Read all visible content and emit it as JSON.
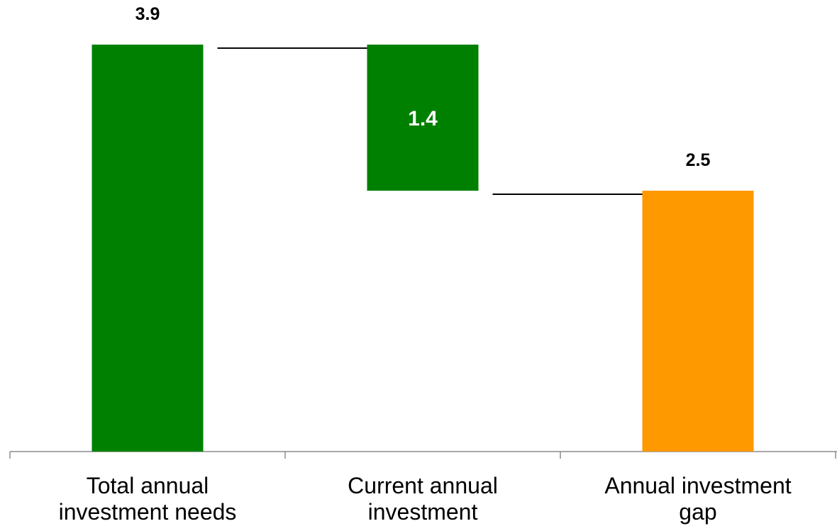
{
  "chart_data": {
    "type": "bar",
    "subtype": "waterfall",
    "categories": [
      [
        "Total annual",
        "investment needs"
      ],
      [
        "Current annual",
        "investment"
      ],
      [
        "Annual investment gap"
      ]
    ],
    "bars": [
      {
        "kind": "total",
        "start": 0,
        "end": 3.9,
        "value": 3.9,
        "label": "3.9",
        "label_position": "above",
        "color": "#008000"
      },
      {
        "kind": "decrease",
        "start": 3.9,
        "end": 2.5,
        "value": 1.4,
        "label": "1.4",
        "label_position": "inside",
        "color": "#008000"
      },
      {
        "kind": "total",
        "start": 0,
        "end": 2.5,
        "value": 2.5,
        "label": "2.5",
        "label_position": "above",
        "color": "#FF9900"
      }
    ],
    "connectors": true,
    "y_axis_visible": false,
    "gridlines": false,
    "legend": "none",
    "ylim": [
      0,
      3.9
    ]
  }
}
